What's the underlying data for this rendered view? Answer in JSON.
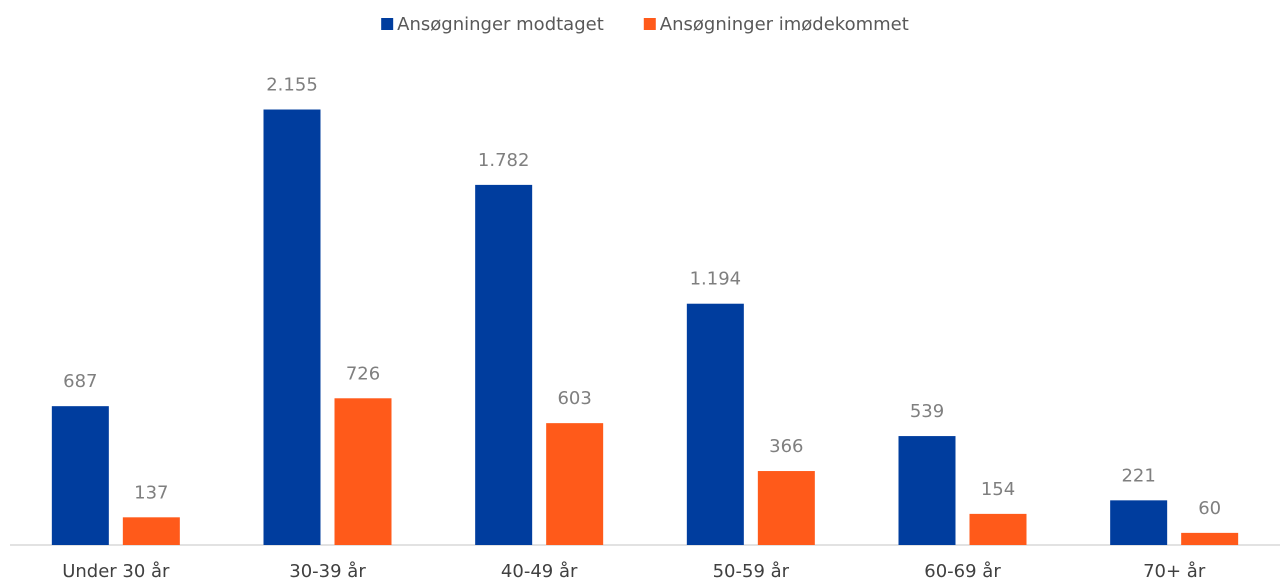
{
  "chart_data": {
    "type": "bar",
    "categories": [
      "Under 30 år",
      "30-39 år",
      "40-49 år",
      "50-59 år",
      "60-69 år",
      "70+ år"
    ],
    "series": [
      {
        "name": "Ansøgninger modtaget",
        "color": "#003d9e",
        "values": [
          687,
          2155,
          1782,
          1194,
          539,
          221
        ],
        "value_labels": [
          "687",
          "2.155",
          "1.782",
          "1.194",
          "539",
          "221"
        ]
      },
      {
        "name": "Ansøgninger imødekommet",
        "color": "#ff5a1a",
        "values": [
          137,
          726,
          603,
          366,
          154,
          60
        ],
        "value_labels": [
          "137",
          "726",
          "603",
          "366",
          "154",
          "60"
        ]
      }
    ],
    "ylim": [
      0,
      2400
    ],
    "legend": "top"
  }
}
